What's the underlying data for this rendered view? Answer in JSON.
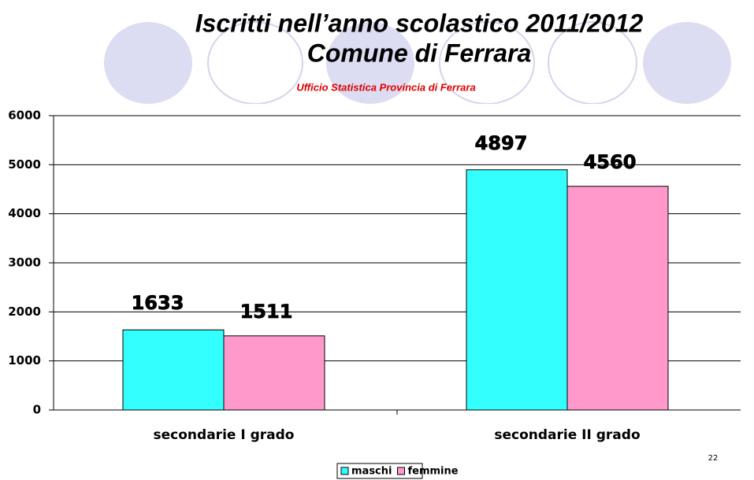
{
  "chart_data": {
    "type": "bar",
    "title": "Iscritti nell’anno scolastico 2011/2012",
    "subtitle": "Comune di Ferrara",
    "source": "Ufficio Statistica Provincia di Ferrara",
    "page_number": "22",
    "categories": [
      "secondarie I grado",
      "secondarie II grado"
    ],
    "series": [
      {
        "name": "maschi",
        "color": "#33ffff",
        "values": [
          1633,
          4897
        ]
      },
      {
        "name": "femmine",
        "color": "#ff99cc",
        "values": [
          1511,
          4560
        ]
      }
    ],
    "ylim": [
      0,
      6000
    ],
    "yticks": [
      0,
      1000,
      2000,
      3000,
      4000,
      5000,
      6000
    ],
    "grid": true
  }
}
